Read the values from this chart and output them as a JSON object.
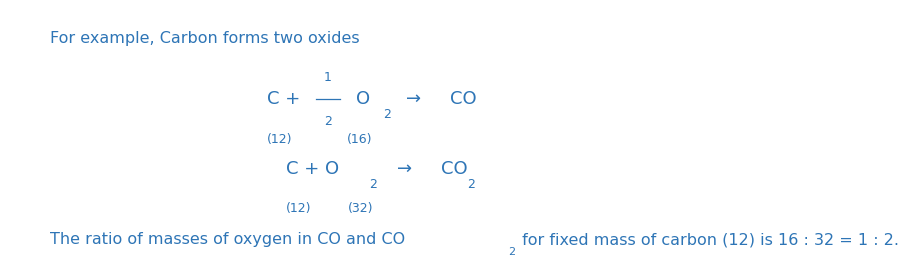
{
  "bg_color": "#ffffff",
  "text_color": "#2e75b6",
  "header": "For example, Carbon forms two oxides",
  "footer_p1": "The ratio of masses of oxygen in CO and CO",
  "footer_sub": "2",
  "footer_p2": " for fixed mass of carbon (12) is 16 : 32 = 1 : 2.",
  "font_size_main": 13,
  "font_size_small": 9,
  "font_size_header": 11.5,
  "font_size_footer": 11.5,
  "fig_width": 9.06,
  "fig_height": 2.58,
  "dpi": 100
}
